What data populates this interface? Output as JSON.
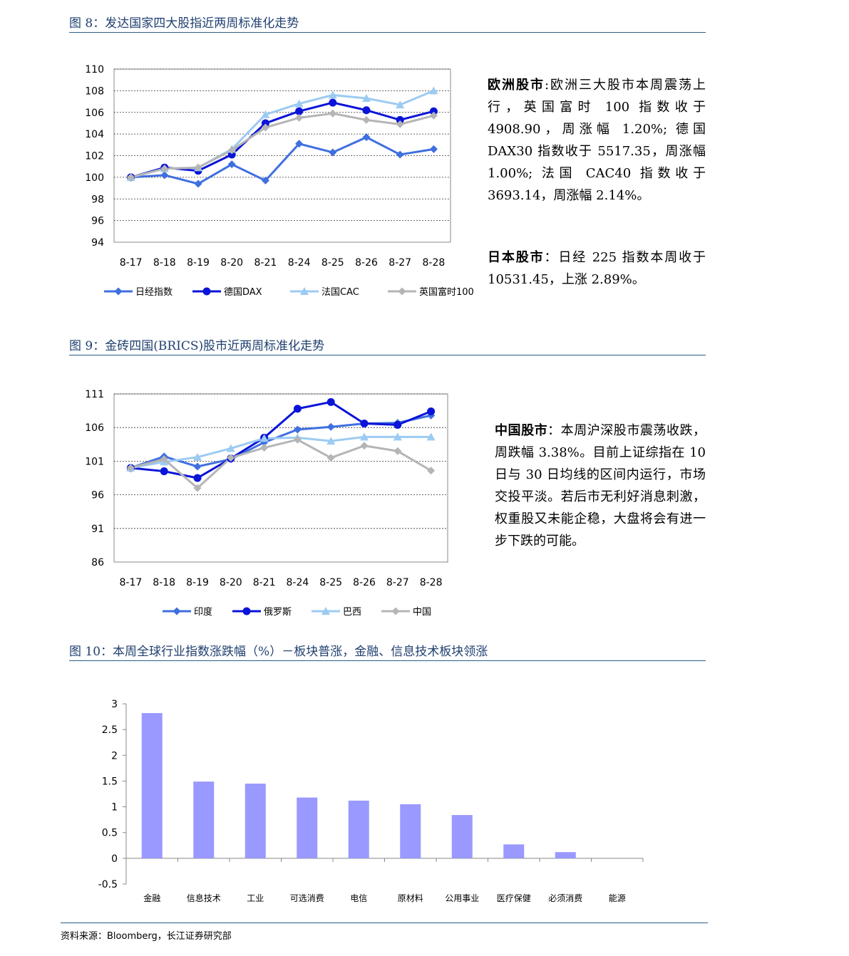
{
  "figures": {
    "fig8": {
      "title": "图 8：发达国家四大股指近两周标准化走势",
      "side_text": {
        "europe_head": "欧洲股市",
        "europe_body": ":欧洲三大股市本周震荡上行，英国富时 100 指数收于 4908.90，周涨幅 1.20%; 德国 DAX30 指数收于 5517.35，周涨幅 1.00%; 法国 CAC40 指数收于 3693.14，周涨幅 2.14%。",
        "japan_head": "日本股市",
        "japan_body": "：日经 225 指数本周收于 10531.45，上涨 2.89%。"
      }
    },
    "fig9": {
      "title": "图 9：金砖四国(BRICS)股市近两周标准化走势",
      "side_text": {
        "china_head": "中国股市",
        "china_body": "：本周沪深股市震荡收跌，周跌幅 3.38%。目前上证综指在 10 日与 30 日均线的区间内运行，市场交投平淡。若后市无利好消息刺激，权重股又未能企稳，大盘将会有进一步下跌的可能。"
      }
    },
    "fig10": {
      "title": "图 10：本周全球行业指数涨跌幅（%）－板块普涨，金融、信息技术板块领涨"
    }
  },
  "source": "资料来源：Bloomberg，长江证券研究部",
  "colors": {
    "series1": "#3f6fe0",
    "series2": "#0a14d8",
    "series3": "#9ccbf2",
    "series4": "#b5b5b5",
    "bar": "#9999ff",
    "title": "#1f3f6f"
  },
  "chart_data": [
    {
      "id": "fig8",
      "type": "line",
      "categories": [
        "8-17",
        "8-18",
        "8-19",
        "8-20",
        "8-21",
        "8-24",
        "8-25",
        "8-26",
        "8-27",
        "8-28"
      ],
      "ylim": [
        94,
        110
      ],
      "yticks": [
        94,
        96,
        98,
        100,
        102,
        104,
        106,
        108,
        110
      ],
      "grid": true,
      "legend": "bottom",
      "series": [
        {
          "name": "日经指数",
          "marker": "diamond",
          "color": "#3f6fe0",
          "values": [
            100,
            100.2,
            99.4,
            101.2,
            99.7,
            103.1,
            102.3,
            103.7,
            102.1,
            102.6
          ]
        },
        {
          "name": "德国DAX",
          "marker": "circle",
          "color": "#0a14d8",
          "values": [
            100,
            100.9,
            100.6,
            102.1,
            105.0,
            106.1,
            106.9,
            106.2,
            105.3,
            106.1
          ]
        },
        {
          "name": "法国CAC",
          "marker": "triangle",
          "color": "#9ccbf2",
          "values": [
            100,
            100.8,
            100.9,
            102.6,
            105.8,
            106.8,
            107.6,
            107.3,
            106.7,
            108.0
          ]
        },
        {
          "name": "英国富时100",
          "marker": "diamond",
          "color": "#b5b5b5",
          "values": [
            100,
            100.8,
            100.9,
            102.5,
            104.6,
            105.5,
            105.9,
            105.3,
            104.9,
            105.7
          ]
        }
      ]
    },
    {
      "id": "fig9",
      "type": "line",
      "categories": [
        "8-17",
        "8-18",
        "8-19",
        "8-20",
        "8-21",
        "8-24",
        "8-25",
        "8-26",
        "8-27",
        "8-28"
      ],
      "ylim": [
        86,
        111
      ],
      "yticks": [
        86,
        91,
        96,
        101,
        106,
        111
      ],
      "grid": true,
      "legend": "bottom",
      "series": [
        {
          "name": "印度",
          "marker": "diamond",
          "color": "#3f6fe0",
          "values": [
            100,
            101.7,
            100.2,
            101.3,
            103.8,
            105.7,
            106.1,
            106.6,
            106.7,
            107.8
          ]
        },
        {
          "name": "俄罗斯",
          "marker": "circle",
          "color": "#0a14d8",
          "values": [
            100,
            99.5,
            98.5,
            101.4,
            104.5,
            108.8,
            109.8,
            106.6,
            106.4,
            108.4
          ]
        },
        {
          "name": "巴西",
          "marker": "triangle",
          "color": "#9ccbf2",
          "values": [
            100,
            100.9,
            101.6,
            102.9,
            104.4,
            104.5,
            104.0,
            104.6,
            104.6,
            104.6
          ]
        },
        {
          "name": "中国",
          "marker": "diamond",
          "color": "#b5b5b5",
          "values": [
            100,
            101.3,
            97.0,
            101.5,
            103.0,
            104.2,
            101.5,
            103.3,
            102.5,
            99.6
          ]
        }
      ]
    },
    {
      "id": "fig10",
      "type": "bar",
      "categories": [
        "金融",
        "信息技术",
        "工业",
        "可选消费",
        "电信",
        "原材料",
        "公用事业",
        "医疗保健",
        "必须消费",
        "能源"
      ],
      "values": [
        2.82,
        1.49,
        1.45,
        1.18,
        1.12,
        1.05,
        0.84,
        0.27,
        0.12,
        0.0
      ],
      "ylim": [
        -0.5,
        3
      ],
      "yticks": [
        -0.5,
        0,
        0.5,
        1,
        1.5,
        2,
        2.5,
        3
      ],
      "ytick_labels": [
        "-0.5",
        "0",
        "0.5",
        "1",
        "1.5",
        "2",
        "2.5",
        "3"
      ],
      "color": "#9999ff",
      "grid": false
    }
  ]
}
